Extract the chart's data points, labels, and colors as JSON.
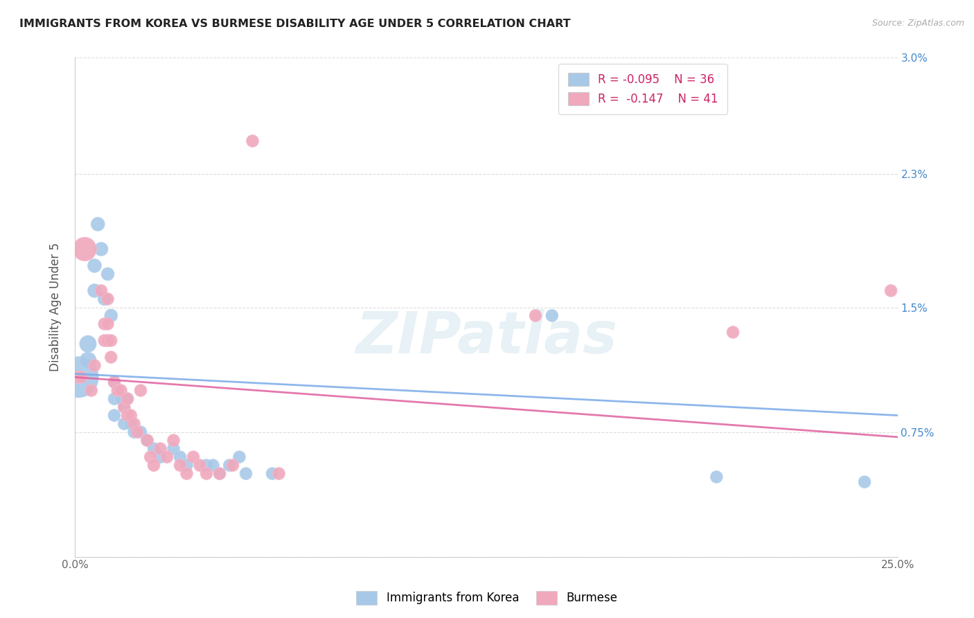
{
  "title": "IMMIGRANTS FROM KOREA VS BURMESE DISABILITY AGE UNDER 5 CORRELATION CHART",
  "source": "Source: ZipAtlas.com",
  "ylabel": "Disability Age Under 5",
  "xlim": [
    0.0,
    0.25
  ],
  "ylim": [
    0.0,
    0.03
  ],
  "xtick_positions": [
    0.0,
    0.05,
    0.1,
    0.15,
    0.2,
    0.25
  ],
  "xtick_labels": [
    "0.0%",
    "",
    "",
    "",
    "",
    "25.0%"
  ],
  "ytick_positions": [
    0.0,
    0.0075,
    0.015,
    0.023,
    0.03
  ],
  "ytick_labels": [
    "",
    "0.75%",
    "1.5%",
    "2.3%",
    "3.0%"
  ],
  "legend_korea_R": "-0.095",
  "legend_korea_N": "36",
  "legend_burmese_R": "-0.147",
  "legend_burmese_N": "41",
  "korea_color": "#a8c8e8",
  "burmese_color": "#f0a8bc",
  "trend_color": "#e060a0",
  "background_color": "#ffffff",
  "watermark": "ZIPatlas",
  "korea_points": [
    [
      0.001,
      0.0108,
      1800
    ],
    [
      0.004,
      0.0128,
      300
    ],
    [
      0.004,
      0.0118,
      300
    ],
    [
      0.006,
      0.0175,
      200
    ],
    [
      0.006,
      0.016,
      200
    ],
    [
      0.007,
      0.02,
      200
    ],
    [
      0.008,
      0.0185,
      200
    ],
    [
      0.009,
      0.0155,
      180
    ],
    [
      0.01,
      0.017,
      180
    ],
    [
      0.011,
      0.0145,
      180
    ],
    [
      0.012,
      0.0095,
      160
    ],
    [
      0.012,
      0.0105,
      160
    ],
    [
      0.012,
      0.0085,
      160
    ],
    [
      0.014,
      0.0095,
      160
    ],
    [
      0.015,
      0.009,
      160
    ],
    [
      0.015,
      0.008,
      160
    ],
    [
      0.016,
      0.0095,
      160
    ],
    [
      0.017,
      0.008,
      160
    ],
    [
      0.018,
      0.0075,
      160
    ],
    [
      0.02,
      0.0075,
      160
    ],
    [
      0.022,
      0.007,
      160
    ],
    [
      0.024,
      0.0065,
      160
    ],
    [
      0.026,
      0.006,
      160
    ],
    [
      0.03,
      0.0065,
      160
    ],
    [
      0.032,
      0.006,
      160
    ],
    [
      0.034,
      0.0055,
      160
    ],
    [
      0.04,
      0.0055,
      160
    ],
    [
      0.042,
      0.0055,
      160
    ],
    [
      0.044,
      0.005,
      160
    ],
    [
      0.047,
      0.0055,
      160
    ],
    [
      0.05,
      0.006,
      160
    ],
    [
      0.052,
      0.005,
      160
    ],
    [
      0.06,
      0.005,
      160
    ],
    [
      0.145,
      0.0145,
      160
    ],
    [
      0.195,
      0.0048,
      160
    ],
    [
      0.24,
      0.0045,
      160
    ]
  ],
  "burmese_points": [
    [
      0.001,
      0.0108,
      160
    ],
    [
      0.002,
      0.0108,
      160
    ],
    [
      0.003,
      0.0185,
      600
    ],
    [
      0.005,
      0.01,
      160
    ],
    [
      0.006,
      0.0115,
      160
    ],
    [
      0.008,
      0.016,
      160
    ],
    [
      0.009,
      0.014,
      160
    ],
    [
      0.009,
      0.013,
      160
    ],
    [
      0.01,
      0.0155,
      160
    ],
    [
      0.01,
      0.014,
      160
    ],
    [
      0.01,
      0.013,
      160
    ],
    [
      0.011,
      0.013,
      160
    ],
    [
      0.011,
      0.012,
      160
    ],
    [
      0.012,
      0.0105,
      160
    ],
    [
      0.013,
      0.01,
      160
    ],
    [
      0.014,
      0.01,
      160
    ],
    [
      0.015,
      0.009,
      160
    ],
    [
      0.016,
      0.0095,
      160
    ],
    [
      0.016,
      0.0085,
      160
    ],
    [
      0.017,
      0.0085,
      160
    ],
    [
      0.018,
      0.008,
      160
    ],
    [
      0.019,
      0.0075,
      160
    ],
    [
      0.02,
      0.01,
      160
    ],
    [
      0.022,
      0.007,
      160
    ],
    [
      0.023,
      0.006,
      160
    ],
    [
      0.024,
      0.0055,
      160
    ],
    [
      0.026,
      0.0065,
      160
    ],
    [
      0.028,
      0.006,
      160
    ],
    [
      0.03,
      0.007,
      160
    ],
    [
      0.032,
      0.0055,
      160
    ],
    [
      0.034,
      0.005,
      160
    ],
    [
      0.036,
      0.006,
      160
    ],
    [
      0.038,
      0.0055,
      160
    ],
    [
      0.04,
      0.005,
      160
    ],
    [
      0.044,
      0.005,
      160
    ],
    [
      0.048,
      0.0055,
      160
    ],
    [
      0.054,
      0.025,
      160
    ],
    [
      0.062,
      0.005,
      160
    ],
    [
      0.14,
      0.0145,
      160
    ],
    [
      0.2,
      0.0135,
      160
    ],
    [
      0.248,
      0.016,
      160
    ]
  ]
}
